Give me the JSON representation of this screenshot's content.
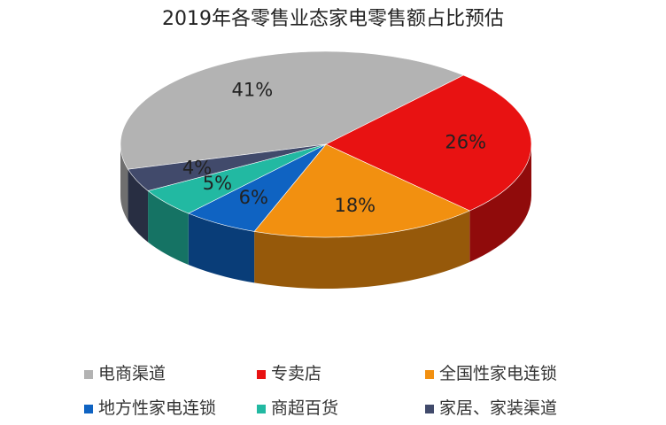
{
  "chart_data": {
    "type": "pie",
    "title": "2019年各零售业态家电零售额占比预估",
    "categories": [
      "电商渠道",
      "专卖店",
      "全国性家电连锁",
      "地方性家电连锁",
      "商超百货",
      "家居、家装渠道"
    ],
    "values": [
      41,
      26,
      18,
      6,
      5,
      4
    ],
    "value_labels": [
      "41%",
      "26%",
      "18%",
      "6%",
      "5%",
      "4%"
    ],
    "colors": [
      "#b3b3b3",
      "#e81212",
      "#f29010",
      "#0f63c2",
      "#22b9a2",
      "#414a6b"
    ],
    "legend": "bottom"
  }
}
